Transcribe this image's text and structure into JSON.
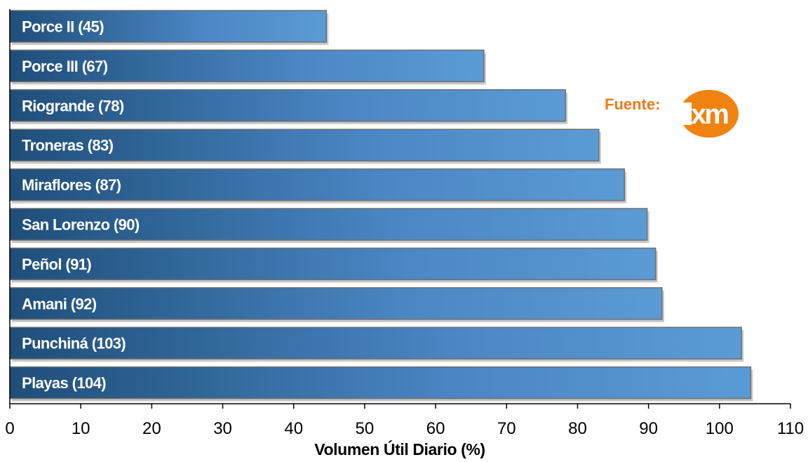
{
  "chart_data": {
    "type": "bar",
    "orientation": "horizontal",
    "categories": [
      "Porce II",
      "Porce III",
      "Riogrande",
      "Troneras",
      "Miraflores",
      "San Lorenzo",
      "Peñol",
      "Amani",
      "Punchiná",
      "Playas"
    ],
    "bar_labels": [
      "Porce II (45)",
      "Porce III (67)",
      "Riogrande (78)",
      "Troneras (83)",
      "Miraflores (87)",
      "San Lorenzo (90)",
      "Peñol (91)",
      "Amani (92)",
      "Punchiná (103)",
      "Playas (104)"
    ],
    "values": [
      44.6,
      66.8,
      78.3,
      83.0,
      86.6,
      89.8,
      91.0,
      91.9,
      103.1,
      104.4
    ],
    "xlabel": "Volumen Útil Diario (%)",
    "xlim": [
      0,
      110
    ],
    "xticks": [
      "0",
      "10",
      "20",
      "30",
      "40",
      "50",
      "60",
      "70",
      "80",
      "90",
      "100",
      "110"
    ],
    "grid": false,
    "colors": {
      "bar_dark": "#1f4e79",
      "bar_light": "#5b9bd5",
      "bar_border": "#6f6f6f",
      "source_text": "#ee7a16",
      "logo": "#f0820f"
    }
  },
  "source": {
    "label": "Fuente:",
    "logo_text": "xm"
  }
}
